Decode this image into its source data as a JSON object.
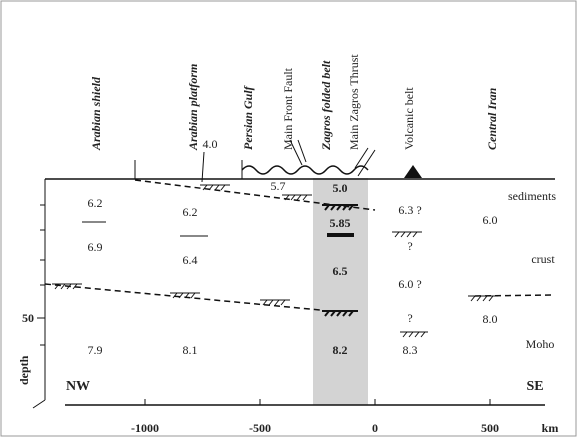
{
  "regions": [
    "Arabian shield",
    "Arabian platform",
    "Persian Gulf",
    "Main Front Fault",
    "Zagros folded belt",
    "Main Zagros Thrust",
    "Volcanic belt",
    "Central Iran"
  ],
  "velocities": [
    "4.0",
    "6.2",
    "6.2",
    "5.7",
    "5.0",
    "5.85",
    "6.3 ?",
    "6.0",
    "6.9",
    "6.4",
    "6.5",
    "?",
    "6.0 ?",
    "8.0",
    "?",
    "7.9",
    "8.1",
    "8.2",
    "8.3"
  ],
  "layers": [
    "sediments",
    "crust",
    "Moho"
  ],
  "directions": [
    "NW",
    "SE"
  ],
  "depth_axis": {
    "label": "depth",
    "tick": "50"
  },
  "distance_axis": {
    "ticks": [
      "-1000",
      "-500",
      "0",
      "500"
    ],
    "unit": "km"
  }
}
